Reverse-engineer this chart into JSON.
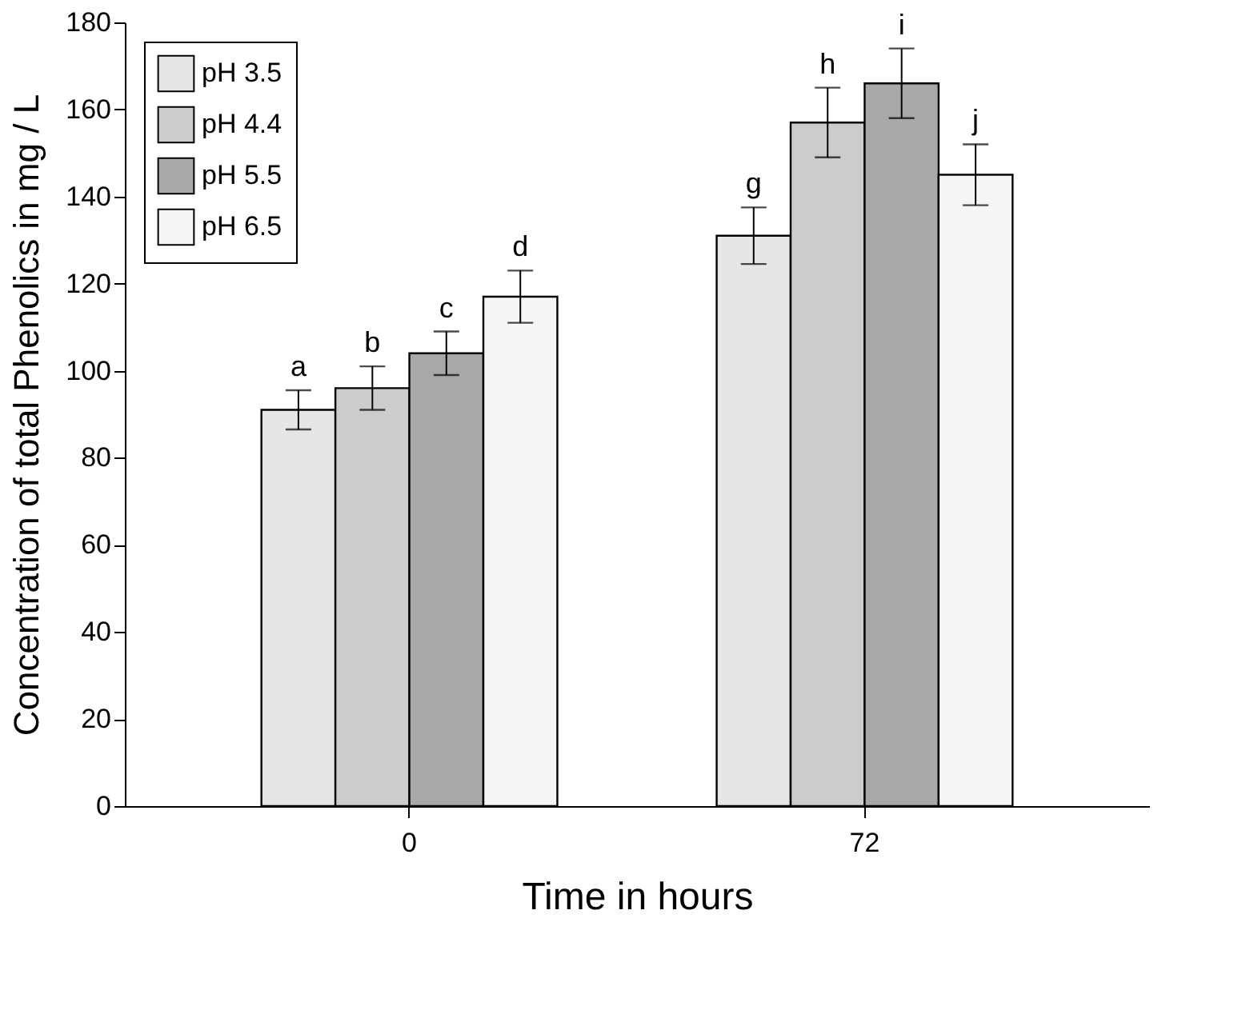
{
  "chart_data": {
    "type": "bar",
    "xlabel": "Time in hours",
    "ylabel": "Concentration of total Phenolics in mg / L",
    "categories": [
      "0",
      "72"
    ],
    "series": [
      {
        "name": "pH 3.5",
        "color": "#e6e6e6",
        "values": [
          91,
          131
        ],
        "errors": [
          4.5,
          6.5
        ],
        "value_labels": [
          "a",
          "g"
        ]
      },
      {
        "name": "pH 4.4",
        "color": "#cccccc",
        "values": [
          96,
          157
        ],
        "errors": [
          5,
          8
        ],
        "value_labels": [
          "b",
          "h"
        ]
      },
      {
        "name": "pH 5.5",
        "color": "#a8a8a8",
        "values": [
          104,
          166
        ],
        "errors": [
          5,
          8
        ],
        "value_labels": [
          "c",
          "i"
        ]
      },
      {
        "name": "pH 6.5",
        "color": "#f5f5f5",
        "values": [
          117,
          145
        ],
        "errors": [
          6,
          7
        ],
        "value_labels": [
          "d",
          "j"
        ]
      }
    ],
    "ylim": [
      0,
      180
    ],
    "yticks": [
      0,
      20,
      40,
      60,
      80,
      100,
      120,
      140,
      160,
      180
    ],
    "grid": false,
    "legend": "top left"
  }
}
